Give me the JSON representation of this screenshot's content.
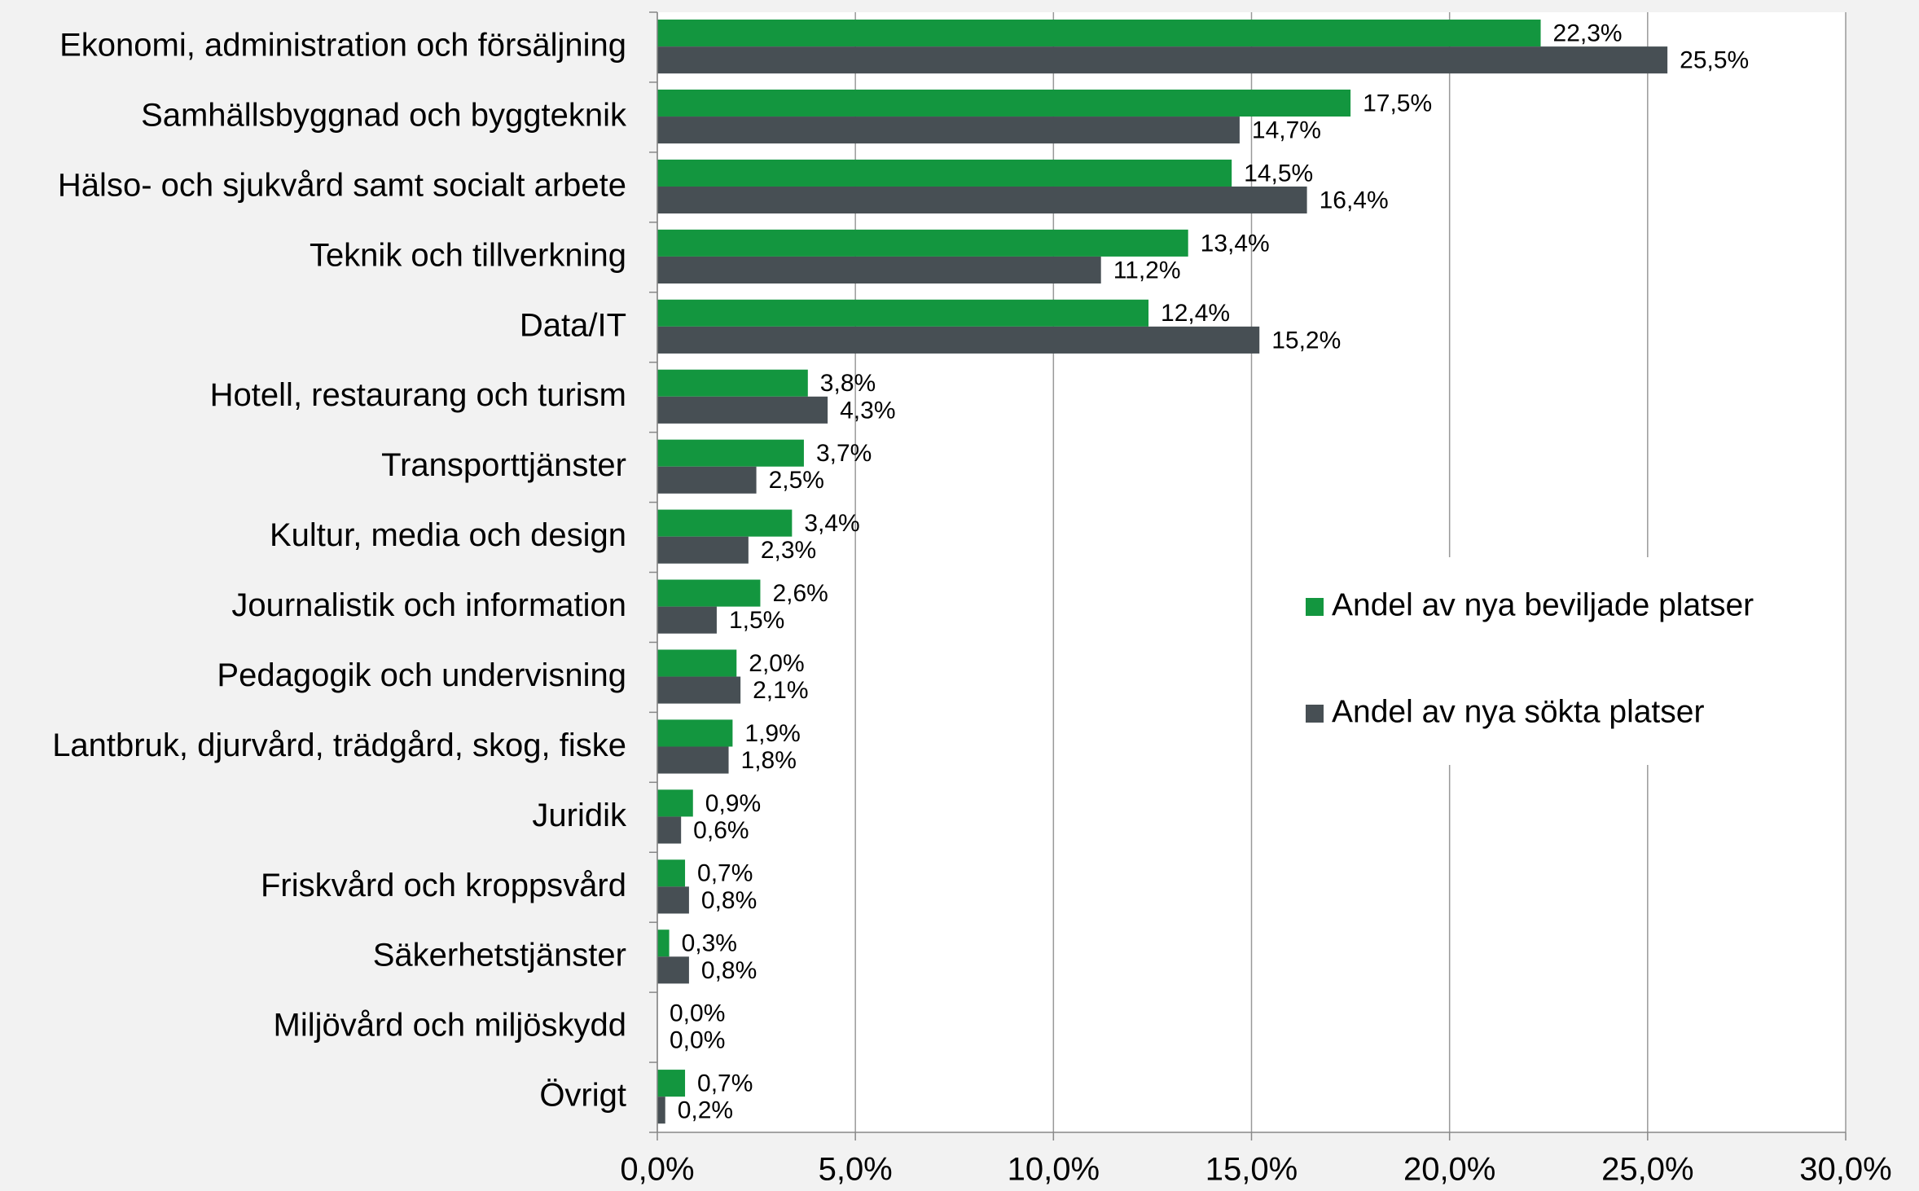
{
  "chart_data": {
    "type": "bar",
    "orientation": "horizontal",
    "categories": [
      "Ekonomi, administration och försäljning",
      "Samhällsbyggnad och byggteknik",
      "Hälso- och sjukvård samt socialt arbete",
      "Teknik och tillverkning",
      "Data/IT",
      "Hotell, restaurang och turism",
      "Transporttjänster",
      "Kultur, media och design",
      "Journalistik och information",
      "Pedagogik och undervisning",
      "Lantbruk, djurvård, trädgård, skog, fiske",
      "Juridik",
      "Friskvård och kroppsvård",
      "Säkerhetstjänster",
      "Miljövård och miljöskydd",
      "Övrigt"
    ],
    "series": [
      {
        "name": "Andel av nya beviljade platser",
        "color": "#13963f",
        "values": [
          22.3,
          17.5,
          14.5,
          13.4,
          12.4,
          3.8,
          3.7,
          3.4,
          2.6,
          2.0,
          1.9,
          0.9,
          0.7,
          0.3,
          0.0,
          0.7
        ],
        "value_labels": [
          "22,3%",
          "17,5%",
          "14,5%",
          "13,4%",
          "12,4%",
          "3,8%",
          "3,7%",
          "3,4%",
          "2,6%",
          "2,0%",
          "1,9%",
          "0,9%",
          "0,7%",
          "0,3%",
          "0,0%",
          "0,7%"
        ]
      },
      {
        "name": "Andel av nya sökta platser",
        "color": "#474f54",
        "values": [
          25.5,
          14.7,
          16.4,
          11.2,
          15.2,
          4.3,
          2.5,
          2.3,
          1.5,
          2.1,
          1.8,
          0.6,
          0.8,
          0.8,
          0.0,
          0.2
        ],
        "value_labels": [
          "25,5%",
          "14,7%",
          "16,4%",
          "11,2%",
          "15,2%",
          "4,3%",
          "2,5%",
          "2,3%",
          "1,5%",
          "2,1%",
          "1,8%",
          "0,6%",
          "0,8%",
          "0,8%",
          "0,0%",
          "0,2%"
        ]
      }
    ],
    "xlim": [
      0,
      30
    ],
    "xticks": [
      {
        "value": 0,
        "label": "0,0%"
      },
      {
        "value": 5,
        "label": "5,0%"
      },
      {
        "value": 10,
        "label": "10,0%"
      },
      {
        "value": 15,
        "label": "15,0%"
      },
      {
        "value": 20,
        "label": "20,0%"
      },
      {
        "value": 25,
        "label": "25,0%"
      },
      {
        "value": 30,
        "label": "30,0%"
      }
    ],
    "grid": true
  }
}
